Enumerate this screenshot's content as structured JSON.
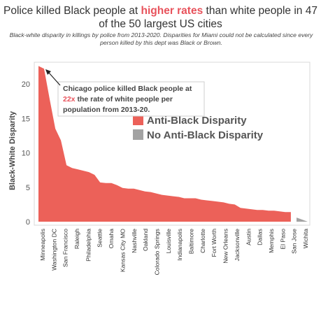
{
  "header": {
    "title_pre": "Police killed Black people at ",
    "title_highlight": "higher rates",
    "title_post": " than white people in 47 of the 50 largest US cities",
    "subtitle": "Black-white disparity in killings by police from 2013-2020. Disparities for Miami could not be calculated since every person killed by this dept was Black or Brown."
  },
  "colors": {
    "anti_black": "#ec6159",
    "no_anti_black": "#a3a3a3",
    "highlight": "#e8525b"
  },
  "annotation": {
    "line1": "Chicago police killed Black people at",
    "highlight": "22x",
    "line2_rest": " the rate of white people per",
    "line3": "population from 2013-20."
  },
  "chart_data": {
    "type": "area",
    "ylabel": "Black-White Disparity",
    "ylim": [
      0,
      23
    ],
    "yticks": [
      0,
      5,
      10,
      15,
      20
    ],
    "legend": [
      {
        "name": "Anti-Black Disparity",
        "color": "#ec6159"
      },
      {
        "name": "No Anti-Black Disparity",
        "color": "#a3a3a3"
      }
    ],
    "x_labels": [
      "Minneapolis",
      "Washington DC",
      "San Francisco",
      "Raleigh",
      "Philadelphia",
      "Seattle",
      "Omaha",
      "Kansas City MO",
      "Nashville",
      "Oakland",
      "Colorado Springs",
      "Louisville",
      "Indianapolis",
      "Baltimore",
      "Charlotte",
      "Fort Worth",
      "New Orleans",
      "Jacksonville",
      "Austin",
      "Dallas",
      "Memphis",
      "El Paso",
      "San Jose",
      "Wichita"
    ],
    "series": [
      {
        "name": "Anti-Black Disparity",
        "values": [
          22.6,
          22.2,
          17.8,
          13.5,
          11.8,
          8.2,
          7.8,
          7.6,
          7.4,
          7.2,
          6.8,
          5.7,
          5.6,
          5.6,
          5.3,
          4.9,
          4.8,
          4.8,
          4.6,
          4.4,
          4.3,
          4.1,
          3.9,
          3.8,
          3.7,
          3.6,
          3.4,
          3.4,
          3.4,
          3.2,
          3.1,
          3.0,
          2.9,
          2.8,
          2.6,
          2.5,
          2.0,
          1.9,
          1.8,
          1.7,
          1.7,
          1.6,
          1.6,
          1.5,
          1.4,
          1.4
        ]
      },
      {
        "name": "No Anti-Black Disparity",
        "values": [
          0.6,
          0.3,
          0.0
        ]
      }
    ]
  }
}
